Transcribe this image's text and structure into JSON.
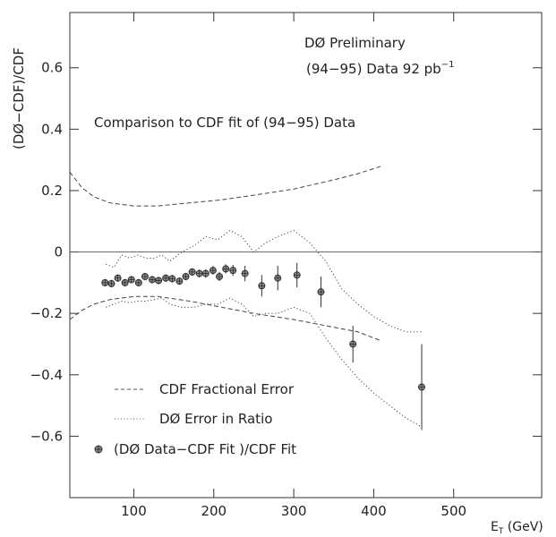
{
  "chart_data": {
    "type": "scatter",
    "xlabel_main": "E",
    "xlabel_sub": "T",
    "xlabel_unit": " (GeV)",
    "ylabel": "(DØ−CDF)/CDF",
    "xlim": [
      20,
      610
    ],
    "ylim": [
      -0.8,
      0.78
    ],
    "xticks": [
      100,
      200,
      300,
      400,
      500
    ],
    "xtick_labels": [
      "100",
      "200",
      "300",
      "400",
      "500"
    ],
    "yticks": [
      0.6,
      0.4,
      0.2,
      0,
      -0.2,
      -0.4,
      -0.6
    ],
    "ytick_labels": [
      "0.6",
      "0.4",
      "0.2",
      "0",
      "−0.2",
      "−0.4",
      "−0.6"
    ],
    "grid": false,
    "annotations": {
      "prelim": "DØ Preliminary",
      "dataset": "(94−95) Data 92 pb",
      "dataset_sup": "−1",
      "comparison": "Comparison to CDF fit of (94−95) Data"
    },
    "legend": [
      {
        "label": "CDF Fractional Error",
        "style": "dashed"
      },
      {
        "label": "DØ Error in Ratio",
        "style": "dotted"
      },
      {
        "label": "(DØ Data−CDF Fit )/CDF Fit",
        "style": "marker"
      }
    ],
    "series": [
      {
        "name": "CDF Fractional Error",
        "style": "dashed",
        "x": [
          20,
          35,
          50,
          70,
          100,
          130,
          170,
          210,
          250,
          300,
          350,
          380,
          410
        ],
        "y": [
          0.26,
          0.21,
          0.18,
          0.16,
          0.15,
          0.15,
          0.16,
          0.17,
          0.185,
          0.205,
          0.235,
          0.255,
          0.28
        ],
        "y_lower": [
          -0.22,
          -0.19,
          -0.17,
          -0.155,
          -0.145,
          -0.145,
          -0.16,
          -0.18,
          -0.2,
          -0.22,
          -0.245,
          -0.26,
          -0.29
        ]
      },
      {
        "name": "DØ Error in Ratio",
        "style": "dotted",
        "x": [
          65,
          75,
          85,
          95,
          105,
          115,
          125,
          135,
          145,
          160,
          175,
          190,
          205,
          220,
          235,
          250,
          265,
          280,
          300,
          320,
          340,
          360,
          380,
          400,
          420,
          440,
          460
        ],
        "y": [
          -0.04,
          -0.05,
          -0.01,
          -0.02,
          -0.01,
          -0.02,
          -0.02,
          -0.01,
          -0.03,
          0.0,
          0.02,
          0.05,
          0.04,
          0.07,
          0.05,
          0.0,
          0.03,
          0.05,
          0.07,
          0.03,
          -0.03,
          -0.12,
          -0.17,
          -0.21,
          -0.24,
          -0.26,
          -0.26
        ],
        "y_lower": [
          -0.18,
          -0.17,
          -0.16,
          -0.165,
          -0.16,
          -0.16,
          -0.155,
          -0.15,
          -0.17,
          -0.18,
          -0.18,
          -0.17,
          -0.17,
          -0.15,
          -0.17,
          -0.21,
          -0.2,
          -0.2,
          -0.18,
          -0.2,
          -0.28,
          -0.35,
          -0.41,
          -0.46,
          -0.5,
          -0.54,
          -0.57
        ]
      },
      {
        "name": "(DØ Data−CDF Fit )/CDF Fit",
        "style": "marker",
        "x": [
          64,
          72,
          80,
          89,
          97,
          106,
          114,
          123,
          131,
          140,
          148,
          157,
          165,
          173,
          182,
          190,
          199,
          207,
          215,
          224,
          239,
          260,
          280,
          304,
          334,
          374,
          460
        ],
        "y": [
          -0.1,
          -0.103,
          -0.085,
          -0.1,
          -0.09,
          -0.1,
          -0.08,
          -0.09,
          -0.093,
          -0.085,
          -0.087,
          -0.095,
          -0.08,
          -0.065,
          -0.07,
          -0.07,
          -0.06,
          -0.08,
          -0.055,
          -0.06,
          -0.07,
          -0.11,
          -0.085,
          -0.075,
          -0.13,
          -0.3,
          -0.44
        ],
        "err": [
          0.012,
          0.012,
          0.012,
          0.012,
          0.012,
          0.012,
          0.012,
          0.012,
          0.012,
          0.012,
          0.012,
          0.012,
          0.012,
          0.012,
          0.013,
          0.014,
          0.014,
          0.015,
          0.015,
          0.018,
          0.025,
          0.035,
          0.04,
          0.04,
          0.05,
          0.06,
          0.14
        ]
      }
    ]
  }
}
